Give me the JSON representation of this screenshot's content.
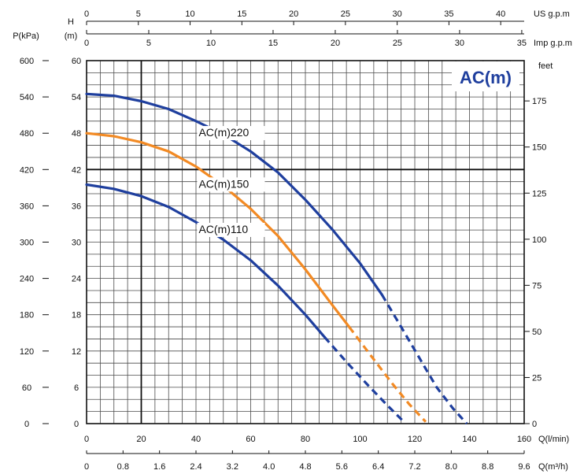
{
  "chart_data": {
    "type": "line",
    "badge": "AC(m)",
    "axes": {
      "h_unit": [
        "H",
        "(m)"
      ],
      "p_unit": "P(kPa)",
      "feet_unit": "feet",
      "q_lmin_unit": "Q(l/min)",
      "q_m3h_unit": "Q(m³/h)",
      "us_unit": "US  g.p.m",
      "imp_unit": "Imp  g.p.m",
      "q_range": [
        0,
        160
      ],
      "h_range": [
        0,
        60
      ],
      "h_ticks": [
        "0",
        "6",
        "12",
        "18",
        "24",
        "30",
        "36",
        "42",
        "48",
        "54",
        "60"
      ],
      "p_ticks": [
        "0",
        "60",
        "120",
        "180",
        "240",
        "300",
        "360",
        "420",
        "480",
        "540",
        "600"
      ],
      "feet_ticks": [
        {
          "v": 0,
          "label": "0"
        },
        {
          "v": 25,
          "label": "25"
        },
        {
          "v": 50,
          "label": "50"
        },
        {
          "v": 75,
          "label": "75"
        },
        {
          "v": 100,
          "label": "100"
        },
        {
          "v": 125,
          "label": "125"
        },
        {
          "v": 150,
          "label": "150"
        },
        {
          "v": 175,
          "label": "175"
        }
      ],
      "q_lmin_ticks": [
        {
          "v": 0,
          "label": "0"
        },
        {
          "v": 20,
          "label": "20"
        },
        {
          "v": 40,
          "label": "40"
        },
        {
          "v": 60,
          "label": "60"
        },
        {
          "v": 80,
          "label": "80"
        },
        {
          "v": 100,
          "label": "100"
        },
        {
          "v": 120,
          "label": "120"
        },
        {
          "v": 140,
          "label": "140"
        },
        {
          "v": 160,
          "label": "160"
        }
      ],
      "q_m3h_ticks": [
        {
          "v": 0,
          "label": "0"
        },
        {
          "v": 0.8,
          "label": "0.8"
        },
        {
          "v": 1.6,
          "label": "1.6"
        },
        {
          "v": 2.4,
          "label": "2.4"
        },
        {
          "v": 3.2,
          "label": "3.2"
        },
        {
          "v": 4.0,
          "label": "4.0"
        },
        {
          "v": 4.8,
          "label": "4.8"
        },
        {
          "v": 5.6,
          "label": "5.6"
        },
        {
          "v": 6.4,
          "label": "6.4"
        },
        {
          "v": 7.2,
          "label": "7.2"
        },
        {
          "v": 8.0,
          "label": "8.0"
        },
        {
          "v": 8.8,
          "label": "8.8"
        },
        {
          "v": 9.6,
          "label": "9.6"
        }
      ],
      "us_ticks": [
        {
          "v": 0,
          "label": "0"
        },
        {
          "v": 5,
          "label": "5"
        },
        {
          "v": 10,
          "label": "10"
        },
        {
          "v": 15,
          "label": "15"
        },
        {
          "v": 20,
          "label": "20"
        },
        {
          "v": 25,
          "label": "25"
        },
        {
          "v": 30,
          "label": "30"
        },
        {
          "v": 35,
          "label": "35"
        },
        {
          "v": 40,
          "label": "40"
        }
      ],
      "imp_ticks": [
        {
          "v": 0,
          "label": "0"
        },
        {
          "v": 5,
          "label": "5"
        },
        {
          "v": 10,
          "label": "10"
        },
        {
          "v": 15,
          "label": "15"
        },
        {
          "v": 20,
          "label": "20"
        },
        {
          "v": 25,
          "label": "25"
        },
        {
          "v": 30,
          "label": "30"
        },
        {
          "v": 35,
          "label": "35"
        }
      ]
    },
    "series": [
      {
        "name": "AC(m)220",
        "color": "#1f3f9e",
        "solid": [
          [
            0,
            54.5
          ],
          [
            10,
            54.2
          ],
          [
            20,
            53.3
          ],
          [
            30,
            52
          ],
          [
            40,
            50
          ],
          [
            50,
            47.8
          ],
          [
            60,
            45
          ],
          [
            70,
            41.5
          ],
          [
            80,
            37
          ],
          [
            90,
            32
          ],
          [
            100,
            26.5
          ],
          [
            108,
            21.3
          ]
        ],
        "dashed": [
          [
            108,
            21.3
          ],
          [
            115,
            16
          ],
          [
            122,
            10.6
          ],
          [
            128,
            6
          ],
          [
            134,
            2.5
          ],
          [
            139,
            0
          ]
        ],
        "label_at": [
          41,
          47.5
        ]
      },
      {
        "name": "AC(m)150",
        "color": "#f28a24",
        "solid": [
          [
            0,
            48
          ],
          [
            10,
            47.5
          ],
          [
            20,
            46.5
          ],
          [
            30,
            45
          ],
          [
            40,
            42.5
          ],
          [
            50,
            39.3
          ],
          [
            60,
            35.5
          ],
          [
            70,
            31
          ],
          [
            80,
            25.5
          ],
          [
            90,
            19.5
          ],
          [
            96,
            16
          ]
        ],
        "dashed": [
          [
            96,
            16
          ],
          [
            104,
            11.2
          ],
          [
            112,
            6.5
          ],
          [
            118,
            3.2
          ],
          [
            124,
            0.3
          ]
        ],
        "label_at": [
          41,
          39
        ]
      },
      {
        "name": "AC(m)110",
        "color": "#1f3f9e",
        "solid": [
          [
            0,
            39.5
          ],
          [
            10,
            38.8
          ],
          [
            20,
            37.6
          ],
          [
            30,
            35.8
          ],
          [
            40,
            33.3
          ],
          [
            50,
            30.4
          ],
          [
            60,
            27
          ],
          [
            70,
            22.8
          ],
          [
            80,
            18
          ],
          [
            87,
            14.3
          ]
        ],
        "dashed": [
          [
            87,
            14.3
          ],
          [
            95,
            10.2
          ],
          [
            103,
            6.3
          ],
          [
            110,
            3
          ],
          [
            116,
            0.3
          ]
        ],
        "label_at": [
          41,
          31.5
        ]
      }
    ]
  }
}
